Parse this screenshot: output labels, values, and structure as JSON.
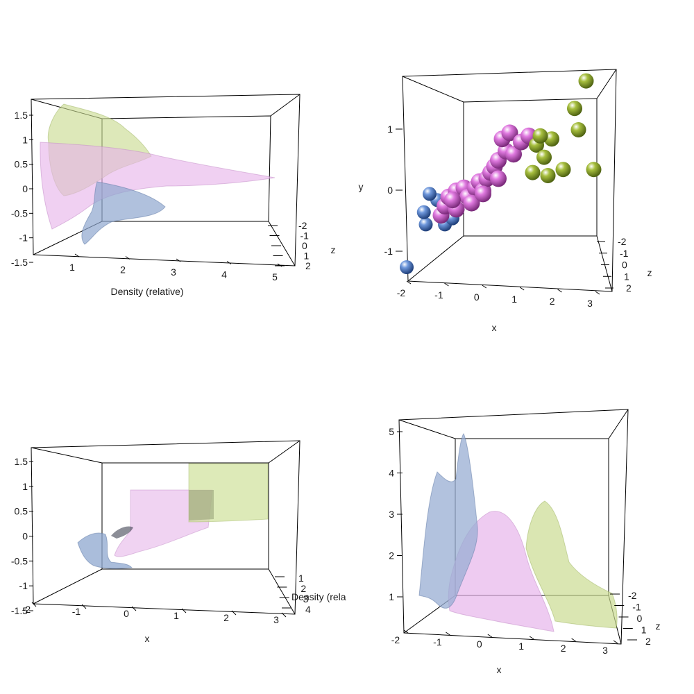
{
  "chart_data": [
    {
      "type": "surface",
      "panel": "top-left",
      "xlabel": "Density (relative)",
      "ylabel": "",
      "zlabel": "z",
      "x_ticks": [
        "1",
        "2",
        "3",
        "4",
        "5"
      ],
      "y_ticks": [
        "-1.5",
        "-1",
        "-0.5",
        "0",
        "0.5",
        "1",
        "1.5"
      ],
      "z_ticks": [
        "-2",
        "-1",
        "0",
        "1",
        "2"
      ],
      "series": [
        {
          "color": "#cfe0a0",
          "y_range": [
            0.3,
            1.7
          ],
          "peak_density": 2.2
        },
        {
          "color": "#e7b6ea",
          "y_range": [
            -0.5,
            1.0
          ],
          "peak_density": 5.0
        },
        {
          "color": "#8da4cc",
          "y_range": [
            -1.2,
            -0.1
          ],
          "peak_density": 2.0
        }
      ]
    },
    {
      "type": "scatter",
      "panel": "top-right",
      "xlabel": "x",
      "ylabel": "y",
      "zlabel": "z",
      "x_ticks": [
        "-2",
        "-1",
        "0",
        "1",
        "2",
        "3"
      ],
      "y_ticks": [
        "-1",
        "0",
        "1"
      ],
      "z_ticks": [
        "-2",
        "-1",
        "0",
        "1",
        "2"
      ],
      "series": [
        {
          "color": "#3a6fc4",
          "points": [
            [
              -1.8,
              -1.25
            ],
            [
              -1.3,
              -0.55
            ],
            [
              -1.35,
              -0.35
            ],
            [
              -1.0,
              -0.15
            ],
            [
              -1.2,
              -0.05
            ],
            [
              -0.8,
              -0.55
            ],
            [
              -0.6,
              -0.45
            ]
          ]
        },
        {
          "color": "#cc55cc",
          "points": [
            [
              -0.9,
              -0.4
            ],
            [
              -0.8,
              -0.25
            ],
            [
              -0.7,
              -0.1
            ],
            [
              -0.5,
              0.0
            ],
            [
              -0.3,
              0.05
            ],
            [
              -0.5,
              -0.3
            ],
            [
              -0.2,
              -0.1
            ],
            [
              0.0,
              0.05
            ],
            [
              0.1,
              0.15
            ],
            [
              0.2,
              0.0
            ],
            [
              0.3,
              0.2
            ],
            [
              0.4,
              0.3
            ],
            [
              0.5,
              0.4
            ],
            [
              0.6,
              0.5
            ],
            [
              0.8,
              0.65
            ],
            [
              0.7,
              0.85
            ],
            [
              0.9,
              0.95
            ],
            [
              1.0,
              0.6
            ],
            [
              1.2,
              0.8
            ],
            [
              1.4,
              0.9
            ],
            [
              -0.1,
              -0.2
            ],
            [
              0.2,
              -0.05
            ],
            [
              -0.6,
              -0.15
            ],
            [
              0.6,
              0.2
            ]
          ]
        },
        {
          "color": "#8aa32a",
          "points": [
            [
              1.6,
              0.75
            ],
            [
              1.8,
              0.55
            ],
            [
              1.9,
              0.25
            ],
            [
              2.0,
              0.85
            ],
            [
              2.3,
              0.35
            ],
            [
              2.6,
              1.35
            ],
            [
              2.7,
              1.0
            ],
            [
              3.1,
              0.35
            ],
            [
              2.9,
              1.8
            ],
            [
              1.7,
              0.9
            ],
            [
              1.5,
              0.3
            ]
          ]
        }
      ]
    },
    {
      "type": "surface",
      "panel": "bottom-left",
      "xlabel": "x",
      "ylabel": "",
      "zlabel": "Density (rela",
      "x_ticks": [
        "-2",
        "-1",
        "0",
        "1",
        "2",
        "3"
      ],
      "y_ticks": [
        "-1.5",
        "-1",
        "-0.5",
        "0",
        "0.5",
        "1",
        "1.5"
      ],
      "z_ticks": [
        "1",
        "2",
        "3",
        "4"
      ],
      "series": [
        {
          "color": "#8da4cc",
          "x_range": [
            -1.5,
            -0.5
          ]
        },
        {
          "color": "#e7b6ea",
          "x_range": [
            -0.5,
            1.5
          ]
        },
        {
          "color": "#cfe0a0",
          "x_range": [
            1.5,
            3.0
          ]
        }
      ]
    },
    {
      "type": "surface",
      "panel": "bottom-right",
      "xlabel": "x",
      "ylabel": "",
      "zlabel": "z",
      "x_ticks": [
        "-2",
        "-1",
        "0",
        "1",
        "2",
        "3"
      ],
      "y_ticks": [
        "1",
        "2",
        "3",
        "4",
        "5"
      ],
      "z_ticks": [
        "-2",
        "-1",
        "0",
        "1",
        "2"
      ],
      "series": [
        {
          "color": "#8da4cc",
          "peak_x": -0.8,
          "peak_density": 5.0
        },
        {
          "color": "#e7b6ea",
          "peak_x": 0.5,
          "peak_density": 3.0
        },
        {
          "color": "#cfe0a0",
          "peak_x": 2.0,
          "peak_density": 3.2
        }
      ]
    }
  ]
}
